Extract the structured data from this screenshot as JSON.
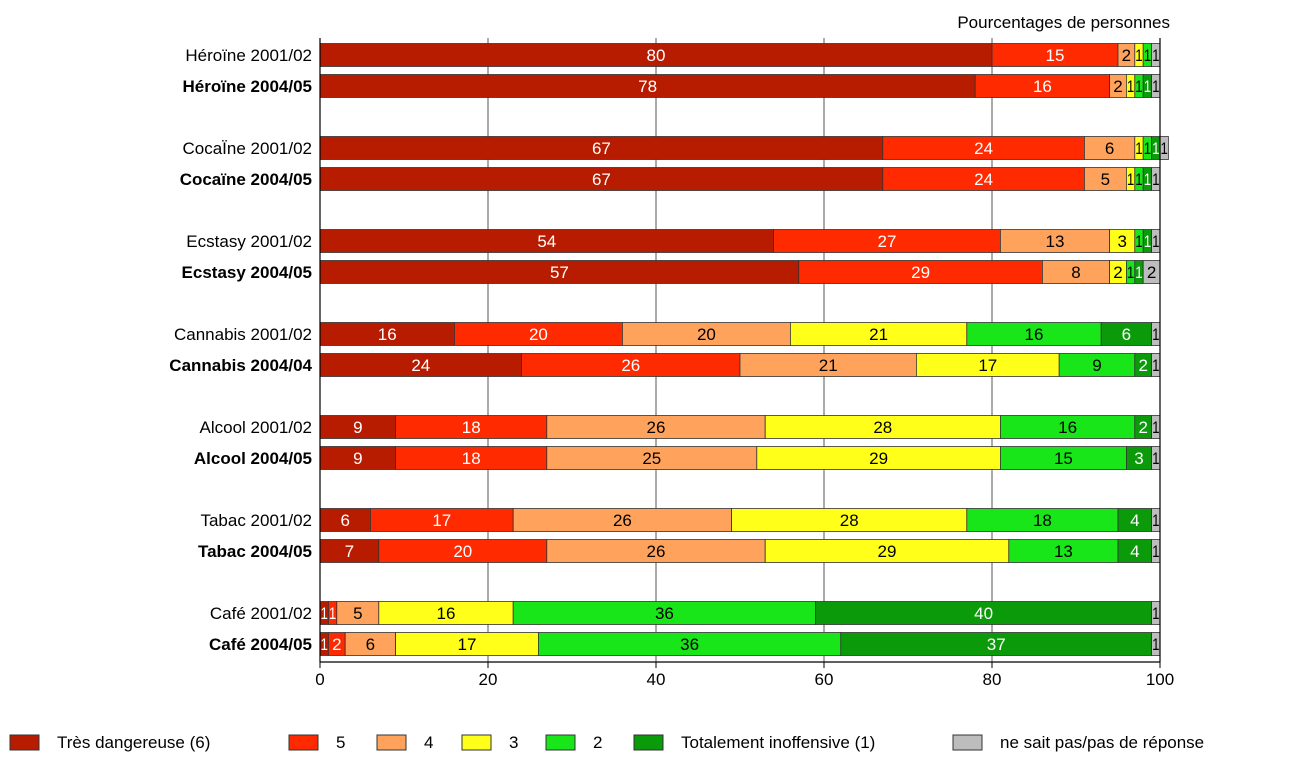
{
  "chart_data": {
    "type": "bar",
    "orientation": "horizontal",
    "stacked": true,
    "unit_label": "Pourcentages de personnes",
    "xlim": [
      0,
      100
    ],
    "xticks": [
      "0",
      "20",
      "40",
      "60",
      "80",
      "100"
    ],
    "grid": true,
    "legend_position": "bottom",
    "categories": [
      {
        "label": "Héroïne 2001/02",
        "bold": false
      },
      {
        "label": "Héroïne 2004/05",
        "bold": true
      },
      {
        "label": "CocaÏne 2001/02",
        "bold": false
      },
      {
        "label": "Cocaïne 2004/05",
        "bold": true
      },
      {
        "label": "Ecstasy 2001/02",
        "bold": false
      },
      {
        "label": "Ecstasy 2004/05",
        "bold": true
      },
      {
        "label": "Cannabis 2001/02",
        "bold": false
      },
      {
        "label": "Cannabis 2004/04",
        "bold": true
      },
      {
        "label": "Alcool 2001/02",
        "bold": false
      },
      {
        "label": "Alcool 2004/05",
        "bold": true
      },
      {
        "label": "Tabac 2001/02",
        "bold": false
      },
      {
        "label": "Tabac 2004/05",
        "bold": true
      },
      {
        "label": "Café 2001/02",
        "bold": false
      },
      {
        "label": "Café 2004/05",
        "bold": true
      }
    ],
    "series": [
      {
        "name": "Très dangereuse (6)",
        "color": "#b81c00",
        "label_color": "#ffffff",
        "values": [
          80,
          78,
          67,
          67,
          54,
          57,
          16,
          24,
          9,
          9,
          6,
          7,
          1,
          1
        ]
      },
      {
        "name": "5",
        "color": "#ff2a00",
        "label_color": "#ffffff",
        "values": [
          15,
          16,
          24,
          24,
          27,
          29,
          20,
          26,
          18,
          18,
          17,
          20,
          1,
          2
        ]
      },
      {
        "name": "4",
        "color": "#ffa35c",
        "label_color": "#000000",
        "values": [
          2,
          2,
          6,
          5,
          13,
          8,
          20,
          21,
          26,
          25,
          26,
          26,
          5,
          6
        ]
      },
      {
        "name": "3",
        "color": "#ffff1a",
        "label_color": "#000000",
        "values": [
          1,
          1,
          1,
          1,
          3,
          2,
          21,
          17,
          28,
          29,
          28,
          29,
          16,
          17
        ]
      },
      {
        "name": "2",
        "color": "#19e619",
        "label_color": "#000000",
        "values": [
          1,
          1,
          1,
          1,
          1,
          1,
          16,
          9,
          16,
          15,
          18,
          13,
          36,
          36
        ]
      },
      {
        "name": "Totalement inoffensive (1)",
        "color": "#0a9a0a",
        "label_color": "#ffffff",
        "values": [
          0,
          1,
          1,
          1,
          1,
          1,
          6,
          2,
          2,
          3,
          4,
          4,
          40,
          37
        ]
      },
      {
        "name": "ne sait pas/pas de réponse",
        "color": "#bdbdbd",
        "label_color": "#000000",
        "values": [
          1,
          1,
          1,
          1,
          1,
          2,
          1,
          1,
          1,
          1,
          1,
          1,
          1,
          1
        ]
      }
    ]
  }
}
